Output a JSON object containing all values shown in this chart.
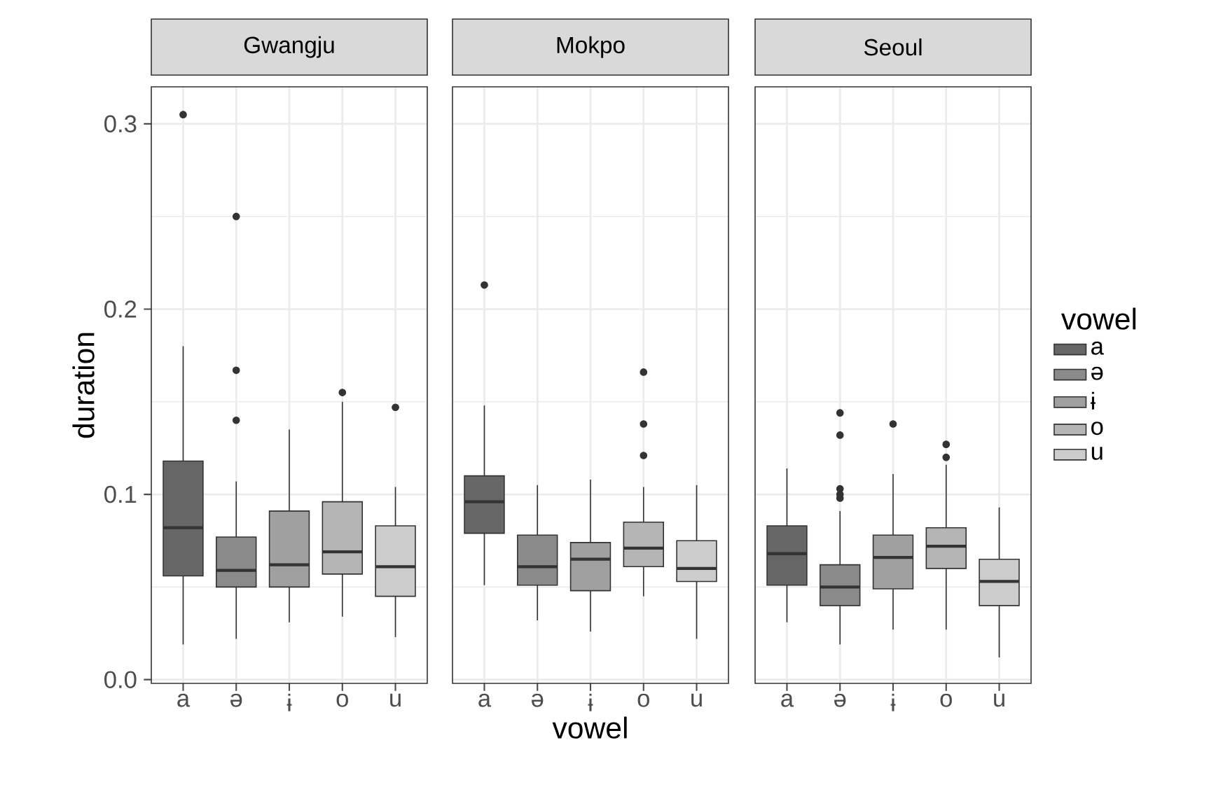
{
  "chart_data": [
    {
      "type": "box",
      "title": "Gwangju",
      "ylabel": "duration",
      "categories": [
        "a",
        "ə",
        "ɨ",
        "o",
        "u"
      ],
      "colors": [
        "#666666",
        "#8a8a8a",
        "#a0a0a0",
        "#b5b5b5",
        "#cccccc"
      ],
      "ylim": [
        -0.002,
        0.32
      ],
      "yticks": [
        {
          "value": 0,
          "label": "0.0"
        },
        0.1,
        0.2,
        0.3
      ],
      "grid": true,
      "boxes": [
        {
          "low": 0.019,
          "q1": 0.056,
          "median": 0.082,
          "q3": 0.118,
          "high": 0.18,
          "outliers": [
            0.305
          ]
        },
        {
          "low": 0.022,
          "q1": 0.05,
          "median": 0.059,
          "q3": 0.077,
          "high": 0.107,
          "outliers": [
            0.25,
            0.167,
            0.14
          ]
        },
        {
          "low": 0.031,
          "q1": 0.05,
          "median": 0.062,
          "q3": 0.091,
          "high": 0.135
        },
        {
          "low": 0.034,
          "q1": 0.057,
          "median": 0.069,
          "q3": 0.096,
          "high": 0.15,
          "outliers": [
            0.155
          ]
        },
        {
          "low": 0.023,
          "q1": 0.045,
          "median": 0.061,
          "q3": 0.083,
          "high": 0.104,
          "outliers": [
            0.147
          ]
        }
      ]
    },
    {
      "type": "box",
      "title": "Mokpo",
      "xlabel": "vowel",
      "categories": [
        "a",
        "ə",
        "ɨ",
        "o",
        "u"
      ],
      "colors": [
        "#666666",
        "#8a8a8a",
        "#a0a0a0",
        "#b5b5b5",
        "#cccccc"
      ],
      "ylim": [
        -0.002,
        0.32
      ],
      "yticks": [
        0,
        0.1,
        0.2,
        0.3
      ],
      "grid": true,
      "tick_labels": "x",
      "boxes": [
        {
          "low": 0.051,
          "q1": 0.079,
          "median": 0.096,
          "q3": 0.11,
          "high": 0.148,
          "outliers": [
            0.213
          ]
        },
        {
          "low": 0.032,
          "q1": 0.051,
          "median": 0.061,
          "q3": 0.078,
          "high": 0.105
        },
        {
          "low": 0.026,
          "q1": 0.048,
          "median": 0.065,
          "q3": 0.074,
          "high": 0.108
        },
        {
          "low": 0.045,
          "q1": 0.061,
          "median": 0.071,
          "q3": 0.085,
          "high": 0.104,
          "outliers": [
            0.166,
            0.138,
            0.121
          ]
        },
        {
          "low": 0.022,
          "q1": 0.053,
          "median": 0.06,
          "q3": 0.075,
          "high": 0.105
        }
      ]
    },
    {
      "type": "box",
      "title": "Seoul",
      "legend": "right",
      "legend_title": "vowel",
      "categories": [
        "a",
        "ə",
        "ɨ",
        "o",
        "u"
      ],
      "ylim": [
        -0.002,
        0.32
      ],
      "yticks": [
        0,
        0.1,
        0.2,
        0.3
      ],
      "grid": true,
      "tick_labels": "x",
      "series": [
        {
          "name": "a",
          "color": "#666666",
          "boxes": [
            {
              "low": 0.031,
              "q1": 0.051,
              "median": 0.068,
              "q3": 0.083,
              "high": 0.114
            },
            null,
            null,
            null,
            null
          ]
        },
        {
          "name": "ə",
          "color": "#8a8a8a",
          "boxes": [
            null,
            {
              "low": 0.019,
              "q1": 0.04,
              "median": 0.05,
              "q3": 0.062,
              "high": 0.091,
              "outliers": [
                0.144,
                0.132,
                0.103,
                0.1,
                0.098
              ]
            },
            null,
            null,
            null
          ]
        },
        {
          "name": "ɨ",
          "color": "#a0a0a0",
          "boxes": [
            null,
            null,
            {
              "low": 0.027,
              "q1": 0.049,
              "median": 0.066,
              "q3": 0.078,
              "high": 0.111,
              "outliers": [
                0.138
              ]
            },
            null,
            null
          ]
        },
        {
          "name": "o",
          "color": "#b5b5b5",
          "boxes": [
            null,
            null,
            null,
            {
              "low": 0.027,
              "q1": 0.06,
              "median": 0.072,
              "q3": 0.082,
              "high": 0.116,
              "outliers": [
                0.127,
                0.12
              ]
            },
            null
          ]
        },
        {
          "name": "u",
          "color": "#cccccc",
          "boxes": [
            null,
            null,
            null,
            null,
            {
              "low": 0.012,
              "q1": 0.04,
              "median": 0.053,
              "q3": 0.065,
              "high": 0.093
            }
          ]
        }
      ]
    }
  ]
}
